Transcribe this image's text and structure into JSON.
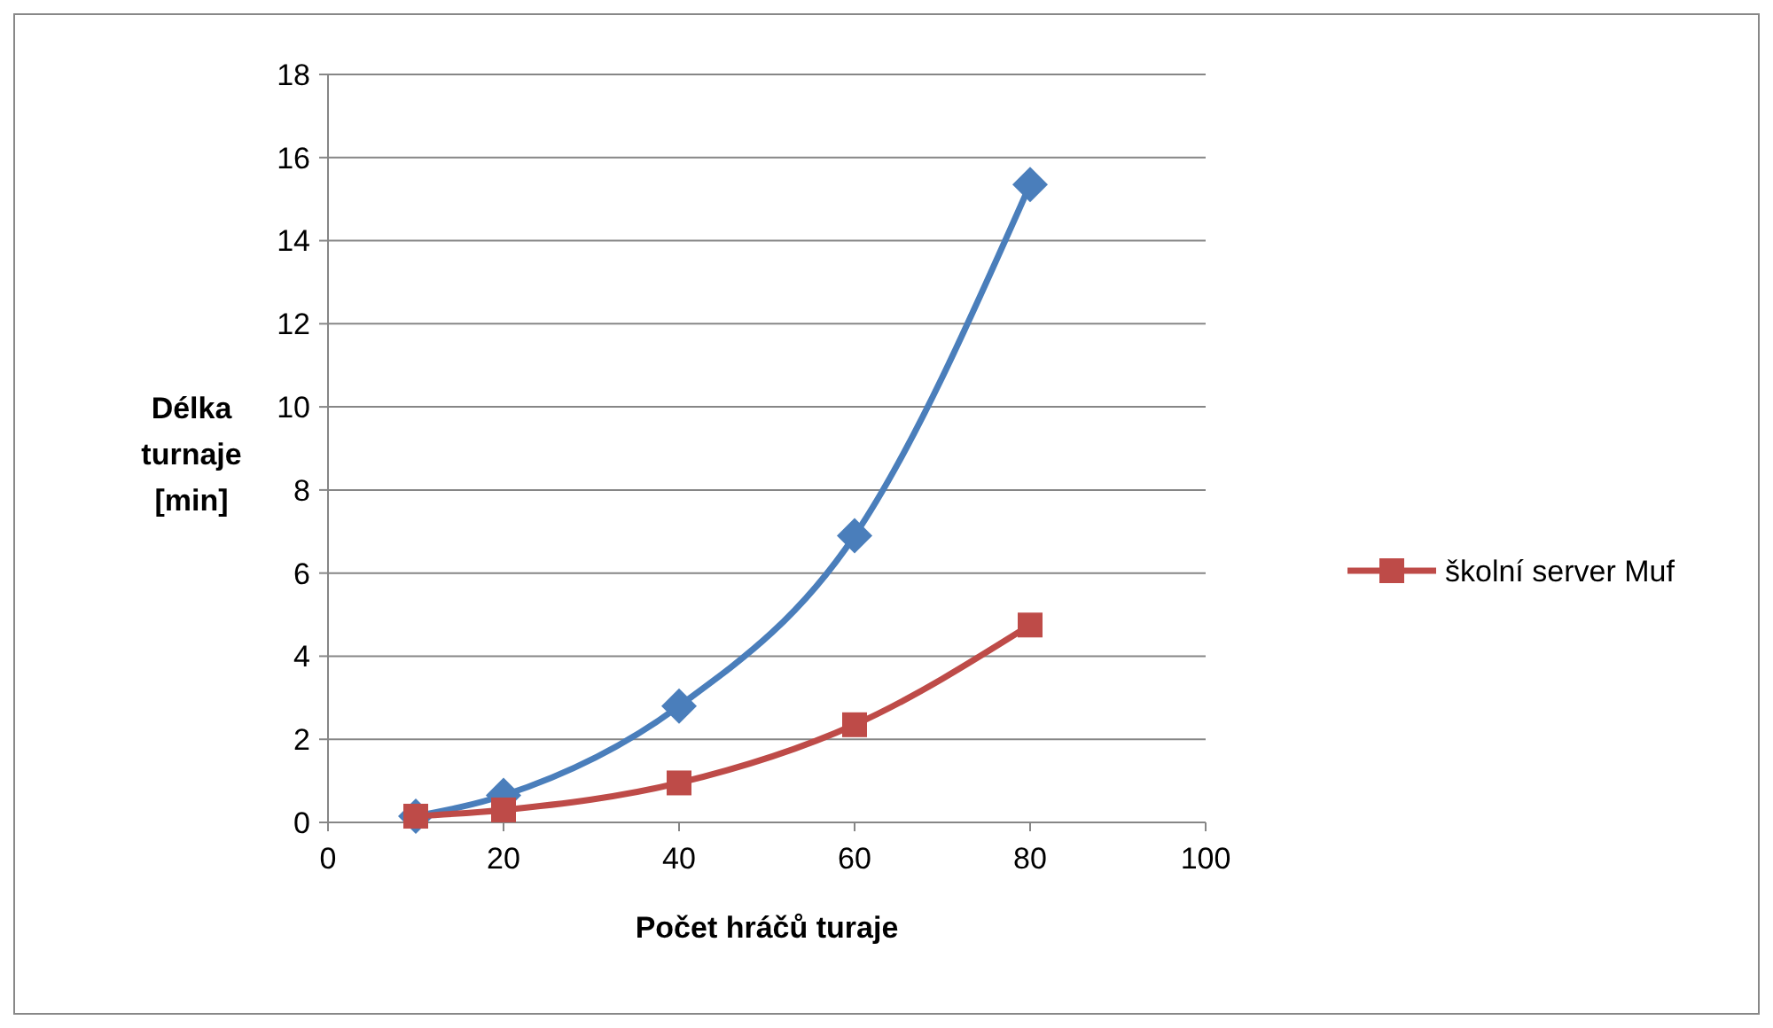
{
  "chart_data": {
    "type": "line",
    "xlabel": "Počet hráčů turaje",
    "ylabel": "Délka turnaje [min]",
    "xlim": [
      0,
      100
    ],
    "xticks": [
      0,
      20,
      40,
      60,
      80,
      100
    ],
    "ylim": [
      0,
      18
    ],
    "yticks": [
      0,
      2,
      4,
      6,
      8,
      10,
      12,
      14,
      16,
      18
    ],
    "grid": "y",
    "legend": "right",
    "series": [
      {
        "color": "#4a7ebb",
        "marker": "diamond",
        "x": [
          10,
          20,
          40,
          60,
          80
        ],
        "values": [
          0.15,
          0.65,
          2.8,
          6.9,
          15.35
        ]
      },
      {
        "name": "školní server Muf",
        "color": "#be4b48",
        "marker": "square",
        "x": [
          10,
          20,
          40,
          60,
          80
        ],
        "values": [
          0.15,
          0.3,
          0.95,
          2.35,
          4.75
        ]
      }
    ]
  }
}
